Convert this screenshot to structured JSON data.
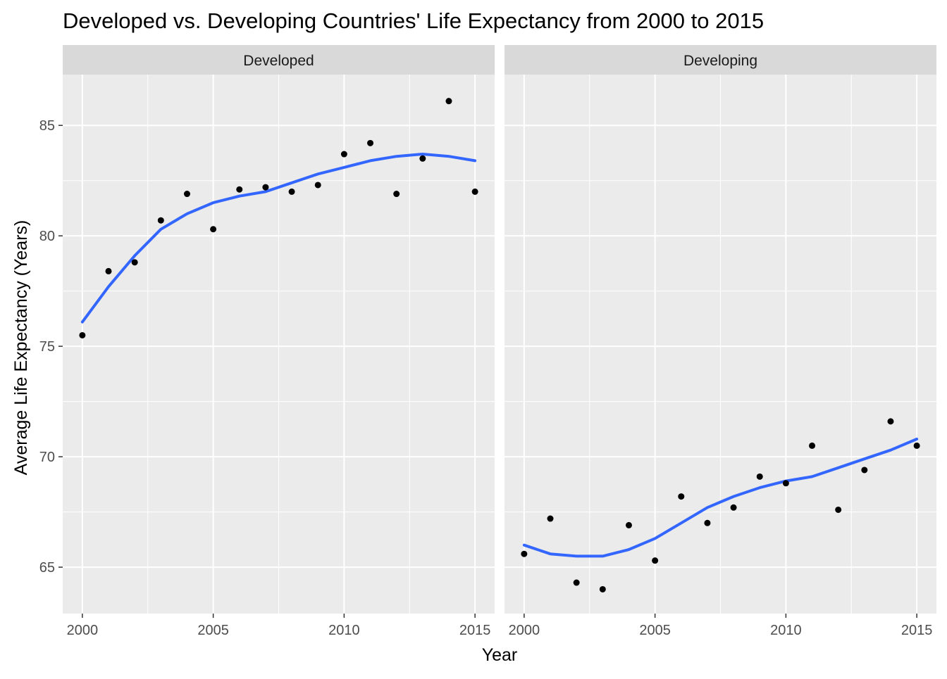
{
  "chart_data": {
    "type": "scatter",
    "title": "Developed vs. Developing Countries' Life Expectancy from 2000 to 2015",
    "xlabel": "Year",
    "ylabel": "Average Life Expectancy (Years)",
    "xlim": [
      1999.25,
      2015.75
    ],
    "ylim": [
      62.9,
      87.3
    ],
    "x_ticks": [
      2000,
      2005,
      2010,
      2015
    ],
    "y_ticks": [
      65,
      70,
      75,
      80,
      85
    ],
    "grid": true,
    "legend": "none",
    "colors": {
      "panel_bg": "#EBEBEB",
      "strip_bg": "#D9D9D9",
      "grid": "#FFFFFF",
      "points": "#000000",
      "smooth": "#3366FF"
    },
    "facets": [
      {
        "label": "Developed",
        "points": {
          "x": [
            2000,
            2001,
            2002,
            2003,
            2004,
            2005,
            2006,
            2007,
            2008,
            2009,
            2010,
            2011,
            2012,
            2013,
            2014,
            2015
          ],
          "y": [
            75.5,
            78.4,
            78.8,
            80.7,
            81.9,
            80.3,
            82.1,
            82.2,
            82.0,
            82.3,
            83.7,
            84.2,
            81.9,
            83.5,
            86.1,
            82.0
          ]
        },
        "smooth": {
          "x": [
            2000,
            2001,
            2002,
            2003,
            2004,
            2005,
            2006,
            2007,
            2008,
            2009,
            2010,
            2011,
            2012,
            2013,
            2014,
            2015
          ],
          "y": [
            76.1,
            77.7,
            79.1,
            80.3,
            81.0,
            81.5,
            81.8,
            82.0,
            82.4,
            82.8,
            83.1,
            83.4,
            83.6,
            83.7,
            83.6,
            83.4
          ]
        }
      },
      {
        "label": "Developing",
        "points": {
          "x": [
            2000,
            2001,
            2002,
            2003,
            2004,
            2005,
            2006,
            2007,
            2008,
            2009,
            2010,
            2011,
            2012,
            2013,
            2014,
            2015
          ],
          "y": [
            65.6,
            67.2,
            64.3,
            64.0,
            66.9,
            65.3,
            68.2,
            67.0,
            67.7,
            69.1,
            68.8,
            70.5,
            67.6,
            69.4,
            71.6,
            70.5
          ]
        },
        "smooth": {
          "x": [
            2000,
            2001,
            2002,
            2003,
            2004,
            2005,
            2006,
            2007,
            2008,
            2009,
            2010,
            2011,
            2012,
            2013,
            2014,
            2015
          ],
          "y": [
            66.0,
            65.6,
            65.5,
            65.5,
            65.8,
            66.3,
            67.0,
            67.7,
            68.2,
            68.6,
            68.9,
            69.1,
            69.5,
            69.9,
            70.3,
            70.8
          ]
        }
      }
    ]
  }
}
